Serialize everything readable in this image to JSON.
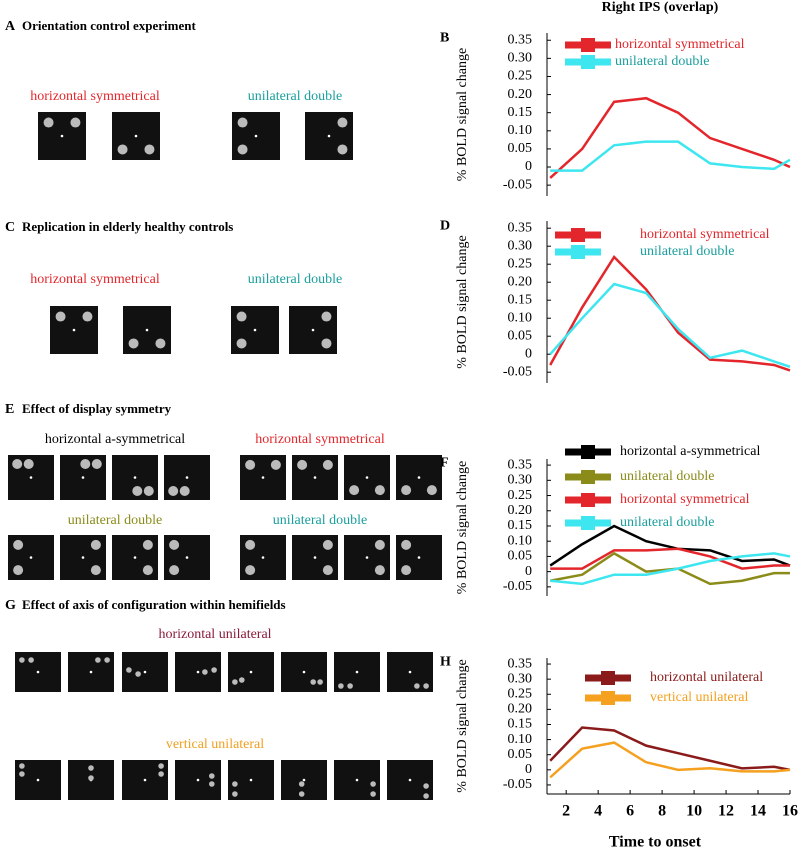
{
  "panels": [
    {
      "letter": "A",
      "title": "Orientation control experiment",
      "groups": [
        {
          "label": "horizontal symmetrical",
          "color": "#e3262b"
        },
        {
          "label": "unilateral double",
          "color": "#1a9e9e"
        }
      ]
    },
    {
      "letter": "C",
      "title": "Replication in elderly healthy controls",
      "groups": [
        {
          "label": "horizontal symmetrical",
          "color": "#e3262b"
        },
        {
          "label": "unilateral double",
          "color": "#1a9e9e"
        }
      ]
    },
    {
      "letter": "E",
      "title": "Effect of display symmetry",
      "groups": [
        {
          "label": "horizontal a-symmetrical",
          "color": "#000000"
        },
        {
          "label": "horizontal symmetrical",
          "color": "#e3262b"
        },
        {
          "label": "unilateral double",
          "color": "#8b8b1a"
        },
        {
          "label": "unilateral double",
          "color": "#1a9e9e"
        }
      ]
    },
    {
      "letter": "G",
      "title": "Effect of axis of configuration within hemifields",
      "groups": [
        {
          "label": "horizontal unilateral",
          "color": "#8b1a3a"
        },
        {
          "label": "vertical unilateral",
          "color": "#f0a020"
        }
      ]
    }
  ],
  "chart_data": [
    {
      "type": "line",
      "panel": "B",
      "title": "Right IPS (overlap)",
      "y_label": "% BOLD signal change",
      "x": [
        1,
        3,
        5,
        7,
        9,
        11,
        13,
        15,
        16
      ],
      "xlim": [
        0.8,
        16
      ],
      "ylim": [
        -0.08,
        0.37
      ],
      "yticks": [
        -0.05,
        0,
        0.05,
        {
          "value": 0.1,
          "label": "0.10"
        },
        0.15,
        {
          "value": 0.2,
          "label": "0.20"
        },
        0.25,
        {
          "value": 0.3,
          "label": "0.30"
        },
        0.35
      ],
      "series": [
        {
          "name": "horizontal symmetrical",
          "color": "#e3262b",
          "values": [
            -0.03,
            0.05,
            0.18,
            0.19,
            0.15,
            0.08,
            0.05,
            0.02,
            0.0
          ]
        },
        {
          "name": "unilateral double",
          "color": "#3ee6ef",
          "values": [
            -0.01,
            -0.01,
            0.06,
            0.07,
            0.07,
            0.01,
            0.0,
            -0.005,
            0.02
          ]
        }
      ]
    },
    {
      "type": "line",
      "panel": "D",
      "y_label": "% BOLD signal change",
      "x": [
        1,
        3,
        5,
        7,
        9,
        11,
        13,
        15,
        16
      ],
      "xlim": [
        0.8,
        16
      ],
      "ylim": [
        -0.08,
        0.37
      ],
      "yticks": [
        -0.05,
        0,
        0.05,
        {
          "value": 0.1,
          "label": "0.10"
        },
        0.15,
        {
          "value": 0.2,
          "label": "0.20"
        },
        0.25,
        {
          "value": 0.3,
          "label": "0.30"
        },
        0.35
      ],
      "series": [
        {
          "name": "horizontal  symmetrical",
          "color": "#e3262b",
          "values": [
            -0.03,
            0.13,
            0.27,
            0.18,
            0.06,
            -0.015,
            -0.02,
            -0.03,
            -0.045
          ]
        },
        {
          "name": "unilateral double",
          "color": "#3ee6ef",
          "values": [
            0.0,
            0.1,
            0.195,
            0.17,
            0.07,
            -0.01,
            0.01,
            -0.02,
            -0.035
          ]
        }
      ]
    },
    {
      "type": "line",
      "panel": "F",
      "y_label": "% BOLD signal change",
      "x": [
        1,
        3,
        5,
        7,
        9,
        11,
        13,
        15,
        16
      ],
      "xlim": [
        0.8,
        16
      ],
      "ylim": [
        -0.08,
        0.37
      ],
      "yticks": [
        -0.05,
        0,
        0.05,
        {
          "value": 0.1,
          "label": "0.10"
        },
        0.15,
        {
          "value": 0.2,
          "label": "0.20"
        },
        0.25,
        {
          "value": 0.3,
          "label": "0.30"
        },
        0.35
      ],
      "series": [
        {
          "name": "horizontal a-symmetrical",
          "color": "#000000",
          "values": [
            0.02,
            0.09,
            0.15,
            0.1,
            0.075,
            0.07,
            0.035,
            0.04,
            0.02
          ]
        },
        {
          "name": "unilateral double",
          "color": "#8b8b1a",
          "values": [
            -0.03,
            -0.01,
            0.06,
            0.0,
            0.01,
            -0.04,
            -0.03,
            -0.005,
            -0.005
          ]
        },
        {
          "name": "horizontal symmetrical",
          "color": "#e3262b",
          "values": [
            0.01,
            0.01,
            0.07,
            0.07,
            0.075,
            0.05,
            0.01,
            0.02,
            0.02
          ]
        },
        {
          "name": "unilateral double",
          "color": "#3ee6ef",
          "values": [
            -0.03,
            -0.04,
            -0.01,
            -0.01,
            0.01,
            0.035,
            0.05,
            0.06,
            0.05
          ]
        }
      ]
    },
    {
      "type": "line",
      "panel": "H",
      "y_label": "% BOLD signal change",
      "x_label": "Time to onset",
      "x": [
        1,
        3,
        5,
        7,
        9,
        11,
        13,
        15,
        16
      ],
      "xlim": [
        0.8,
        16
      ],
      "ylim": [
        -0.08,
        0.37
      ],
      "xticks": [
        2,
        4,
        6,
        8,
        10,
        12,
        14,
        16
      ],
      "yticks": [
        -0.05,
        0,
        0.05,
        {
          "value": 0.1,
          "label": "0.10"
        },
        0.15,
        {
          "value": 0.2,
          "label": "0.20"
        },
        0.25,
        {
          "value": 0.3,
          "label": "0.30"
        },
        0.35
      ],
      "series": [
        {
          "name": "horizontal unilateral",
          "color": "#8b1a1a",
          "values": [
            0.03,
            0.14,
            0.13,
            0.08,
            0.055,
            0.03,
            0.005,
            0.01,
            0.0
          ]
        },
        {
          "name": "vertical unilateral",
          "color": "#f5a01e",
          "values": [
            -0.025,
            0.07,
            0.09,
            0.025,
            0.0,
            0.005,
            -0.005,
            -0.005,
            0.0
          ]
        }
      ]
    }
  ]
}
